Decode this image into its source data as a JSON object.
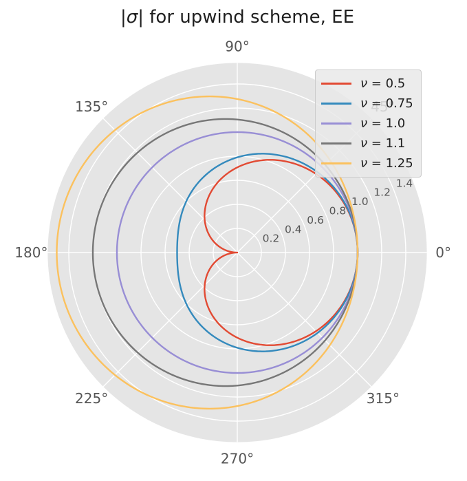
{
  "title": {
    "prefix": "|",
    "sigma": "σ",
    "suffix": "| for upwind scheme, EE"
  },
  "chart_data": {
    "type": "line",
    "subtype": "polar",
    "title": "|σ| for upwind scheme, EE",
    "grid": true,
    "legend_position": "upper right",
    "angle_ticks_deg": [
      0,
      45,
      90,
      135,
      180,
      225,
      270,
      315
    ],
    "angle_tick_labels": [
      "0°",
      "45°",
      "90°",
      "135°",
      "180°",
      "225°",
      "270°",
      "315°"
    ],
    "r_ticks": [
      0.2,
      0.4,
      0.6,
      0.8,
      1.0,
      1.2,
      1.4
    ],
    "r_tick_labels": [
      "0.2",
      "0.4",
      "0.6",
      "0.8",
      "1.0",
      "1.2",
      "1.4"
    ],
    "r_label_angle_deg": 22.5,
    "r_outer": 1.575,
    "r_formula": "r(θ) = |1 - ν(1 - e^{-iθ})|",
    "theta_sample_deg": [
      0,
      15,
      30,
      45,
      60,
      75,
      90,
      105,
      120,
      135,
      150,
      165,
      180
    ],
    "symmetric_about_theta_0": true,
    "series": [
      {
        "label": "ν = 0.5",
        "label_symbol": "ν",
        "label_rest": " = 0.5",
        "nu": 0.5,
        "color": "#E24A33",
        "sample_r": [
          1.0,
          0.991,
          0.966,
          0.924,
          0.866,
          0.793,
          0.707,
          0.609,
          0.5,
          0.383,
          0.259,
          0.131,
          0.0
        ]
      },
      {
        "label": "ν = 0.75",
        "label_symbol": "ν",
        "label_rest": " = 0.75",
        "nu": 0.75,
        "color": "#348ABD",
        "sample_r": [
          1.0,
          0.994,
          0.975,
          0.943,
          0.901,
          0.85,
          0.791,
          0.727,
          0.661,
          0.6,
          0.548,
          0.512,
          0.5
        ]
      },
      {
        "label": "ν = 1.0",
        "label_symbol": "ν",
        "label_rest": " = 1.0",
        "nu": 1.0,
        "color": "#988ED5",
        "sample_r": [
          1.0,
          1.0,
          1.0,
          1.0,
          1.0,
          1.0,
          1.0,
          1.0,
          1.0,
          1.0,
          1.0,
          1.0,
          1.0
        ]
      },
      {
        "label": "ν = 1.1",
        "label_symbol": "ν",
        "label_rest": " = 1.1",
        "nu": 1.1,
        "color": "#777777",
        "sample_r": [
          1.0,
          1.004,
          1.015,
          1.032,
          1.054,
          1.078,
          1.105,
          1.13,
          1.153,
          1.173,
          1.188,
          1.197,
          1.2
        ]
      },
      {
        "label": "ν = 1.25",
        "label_symbol": "ν",
        "label_rest": " = 1.25",
        "nu": 1.25,
        "color": "#FBC15E",
        "sample_r": [
          1.0,
          1.011,
          1.041,
          1.088,
          1.146,
          1.21,
          1.275,
          1.337,
          1.392,
          1.438,
          1.472,
          1.493,
          1.5
        ]
      }
    ],
    "style": {
      "axes_background": "#E5E5E5",
      "grid_color": "#FFFFFF",
      "tick_label_color": "#555555",
      "text_color": "#1f1f1f",
      "figure_background": "#FFFFFF",
      "line_width": 2.4
    }
  }
}
